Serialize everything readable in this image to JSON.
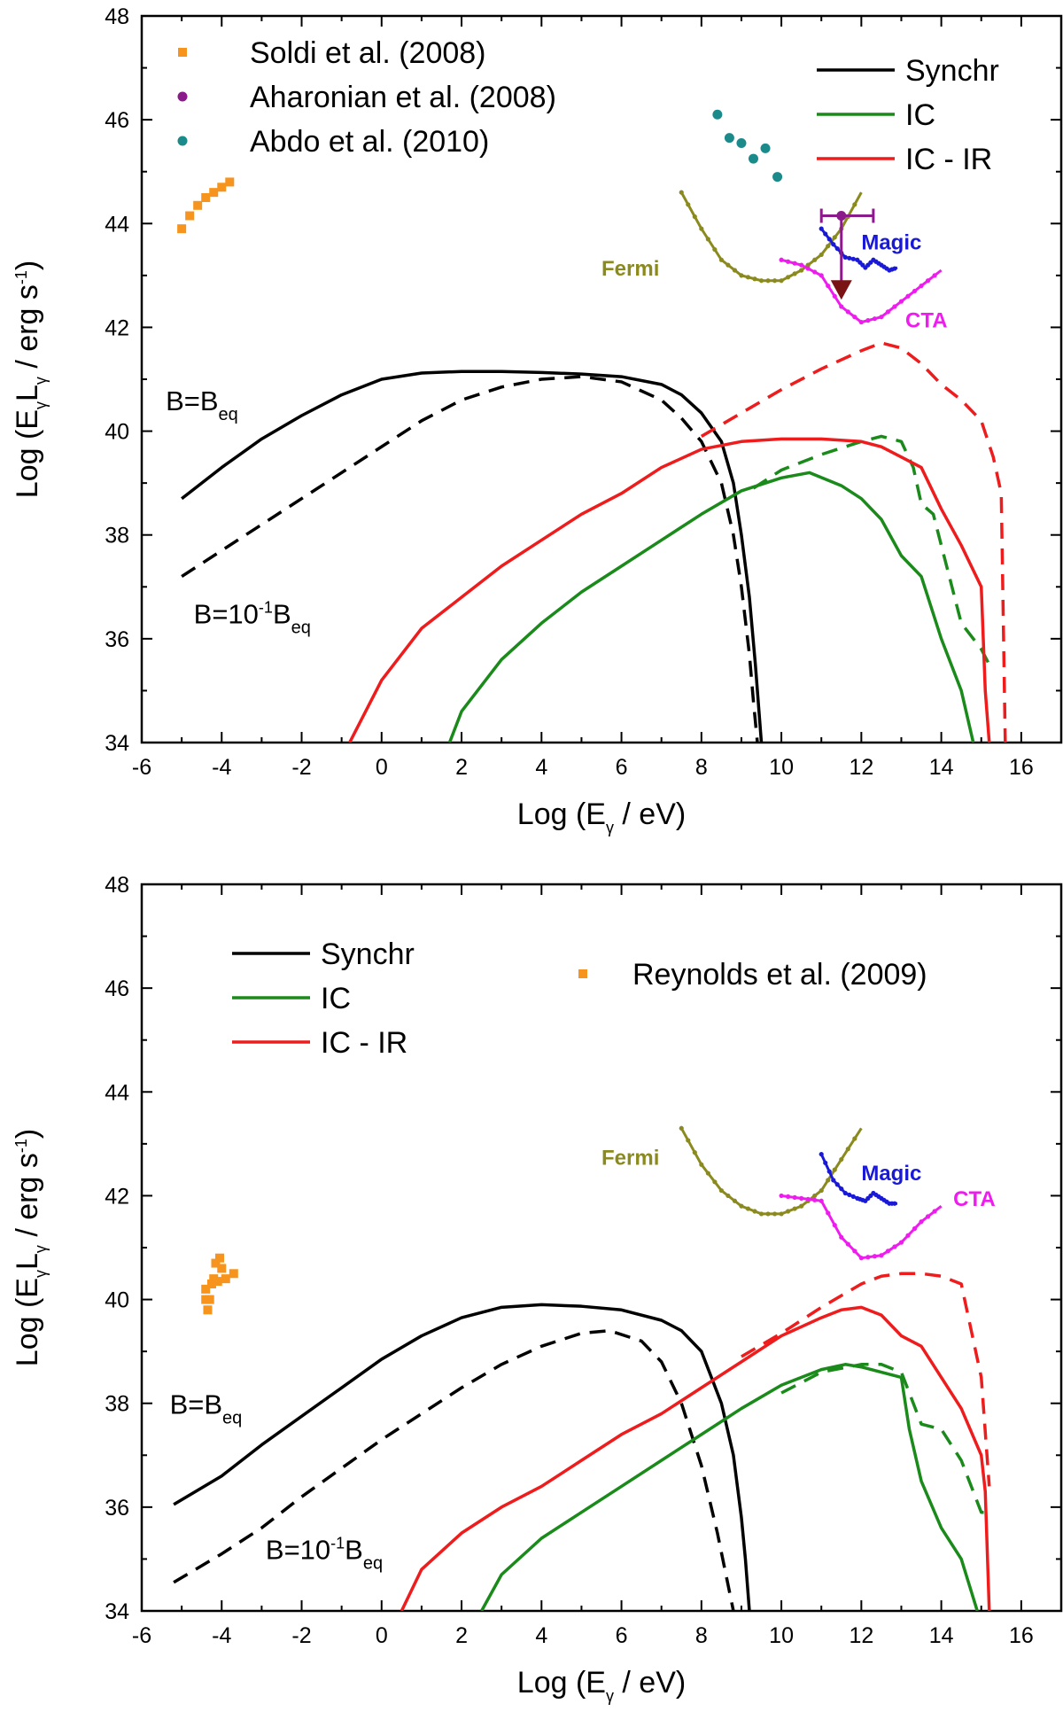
{
  "chart_data": [
    {
      "type": "line",
      "panel": "top",
      "xlabel": "Log (E",
      "xlabel_sub": "γ",
      "xlabel_tail": " / eV)",
      "ylabel": "Log (E",
      "ylabel_sub1": "γ",
      "ylabel_mid": "L",
      "ylabel_sub2": "γ",
      "ylabel_tail": " / erg s",
      "ylabel_sup": "-1",
      "ylabel_end": ")",
      "xlim": [
        -6,
        17
      ],
      "ylim": [
        34,
        48
      ],
      "xticks": [
        -6,
        -4,
        -2,
        0,
        2,
        4,
        6,
        8,
        10,
        12,
        14,
        16
      ],
      "yticks": [
        34,
        36,
        38,
        40,
        42,
        44,
        46,
        48
      ],
      "annotations": [
        {
          "text": "B=B",
          "sub": "eq",
          "x": -5.4,
          "y": 40.4
        },
        {
          "text": "B=10",
          "sup": "-1",
          "mid": "B",
          "sub": "eq",
          "x": -4.7,
          "y": 36.3
        }
      ],
      "legend_series": [
        {
          "name": "Synchr",
          "color": "#000000"
        },
        {
          "name": "IC",
          "color": "#1a8a1a"
        },
        {
          "name": "IC - IR",
          "color": "#ee1c1c"
        }
      ],
      "legend_points": [
        {
          "name": "Soldi et al. (2008)",
          "color": "#f7941d",
          "marker": "square"
        },
        {
          "name": "Aharonian et al. (2008)",
          "color": "#8b1a8b",
          "marker": "circle"
        },
        {
          "name": "Abdo et al. (2010)",
          "color": "#1a8a8a",
          "marker": "circle"
        }
      ],
      "series": [
        {
          "name": "Synchr",
          "style": "solid",
          "color": "#000000",
          "x": [
            -5,
            -4,
            -3,
            -2,
            -1,
            0,
            1,
            2,
            3,
            4,
            5,
            6,
            7,
            7.5,
            8,
            8.5,
            8.8,
            9.0,
            9.2,
            9.35,
            9.45,
            9.5
          ],
          "y": [
            38.7,
            39.3,
            39.85,
            40.3,
            40.7,
            41.0,
            41.12,
            41.15,
            41.15,
            41.13,
            41.1,
            41.05,
            40.9,
            40.7,
            40.35,
            39.8,
            39.0,
            38.0,
            36.8,
            35.5,
            34.5,
            34
          ]
        },
        {
          "name": "Synchr B=0.1Beq",
          "style": "dashed",
          "color": "#000000",
          "x": [
            -5,
            -4,
            -3,
            -2,
            -1,
            0,
            1,
            2,
            3,
            4,
            5,
            6,
            7,
            7.5,
            8,
            8.5,
            8.8,
            9.0,
            9.2,
            9.3,
            9.4
          ],
          "y": [
            37.2,
            37.7,
            38.2,
            38.7,
            39.2,
            39.7,
            40.2,
            40.6,
            40.85,
            41.0,
            41.05,
            40.95,
            40.6,
            40.25,
            39.8,
            39.0,
            38.0,
            37.0,
            35.7,
            34.8,
            34
          ]
        },
        {
          "name": "IC",
          "style": "solid",
          "color": "#1a8a1a",
          "x": [
            1.7,
            2,
            3,
            4,
            5,
            6,
            7,
            8,
            9,
            10,
            10.7,
            11.5,
            12,
            12.5,
            13,
            13.5,
            14,
            14.5,
            14.8
          ],
          "y": [
            34,
            34.6,
            35.6,
            36.3,
            36.9,
            37.4,
            37.9,
            38.4,
            38.85,
            39.1,
            39.2,
            38.95,
            38.7,
            38.3,
            37.6,
            37.2,
            36.0,
            35.0,
            34
          ]
        },
        {
          "name": "IC dashed",
          "style": "dashed",
          "color": "#1a8a1a",
          "x": [
            9.3,
            10,
            11,
            12,
            12.5,
            13,
            13.3,
            13.5,
            13.8,
            14,
            14.5,
            15,
            15.2
          ],
          "y": [
            38.9,
            39.25,
            39.55,
            39.8,
            39.9,
            39.8,
            39.3,
            38.6,
            38.4,
            37.8,
            36.3,
            35.8,
            35.5
          ]
        },
        {
          "name": "IC - IR",
          "style": "solid",
          "color": "#ee1c1c",
          "x": [
            -0.8,
            0,
            1,
            2,
            3,
            4,
            5,
            6,
            7,
            8,
            9,
            10,
            11,
            12,
            12.5,
            13,
            13.5,
            14,
            14.5,
            15,
            15.1,
            15.2
          ],
          "y": [
            34,
            35.2,
            36.2,
            36.8,
            37.4,
            37.9,
            38.4,
            38.8,
            39.3,
            39.65,
            39.8,
            39.85,
            39.85,
            39.8,
            39.7,
            39.5,
            39.3,
            38.5,
            37.8,
            37.0,
            35.0,
            34
          ]
        },
        {
          "name": "IC - IR dashed",
          "style": "dashed",
          "color": "#ee1c1c",
          "x": [
            8,
            9,
            10,
            11,
            12,
            12.5,
            13,
            13.5,
            14,
            14.5,
            15,
            15.3,
            15.5,
            15.6
          ],
          "y": [
            39.9,
            40.35,
            40.8,
            41.2,
            41.55,
            41.7,
            41.6,
            41.3,
            40.9,
            40.6,
            40.2,
            39.5,
            38.8,
            34
          ]
        }
      ],
      "instruments": [
        {
          "name": "Fermi",
          "color": "#8a8a1e",
          "label_x": 5.5,
          "label_y": 43.0,
          "x": [
            7.5,
            8,
            8.5,
            9,
            9.5,
            10,
            10.5,
            11,
            11.5,
            12
          ],
          "y": [
            44.6,
            43.9,
            43.3,
            43.0,
            42.9,
            42.9,
            43.1,
            43.4,
            43.9,
            44.6
          ]
        },
        {
          "name": "Magic",
          "color": "#1a1ad6",
          "label_x": 12.0,
          "label_y": 43.5,
          "x": [
            11.0,
            11.3,
            11.6,
            11.9,
            12.1,
            12.3,
            12.5,
            12.7,
            12.9
          ],
          "y": [
            43.9,
            43.6,
            43.35,
            43.3,
            43.15,
            43.3,
            43.2,
            43.1,
            43.15
          ]
        },
        {
          "name": "CTA",
          "color": "#ee1cee",
          "label_x": 13.1,
          "label_y": 42.0,
          "x": [
            10,
            10.5,
            11,
            11.5,
            12,
            12.5,
            13,
            13.5,
            14
          ],
          "y": [
            43.3,
            43.2,
            43.0,
            42.4,
            42.1,
            42.2,
            42.5,
            42.8,
            43.1
          ]
        }
      ],
      "points": [
        {
          "name": "Soldi et al. (2008)",
          "color": "#f7941d",
          "marker": "square",
          "x": [
            -5.0,
            -4.8,
            -4.6,
            -4.4,
            -4.2,
            -4.0,
            -3.8
          ],
          "y": [
            43.9,
            44.15,
            44.35,
            44.5,
            44.6,
            44.7,
            44.8
          ]
        },
        {
          "name": "Abdo et al. (2010)",
          "color": "#1a8a8a",
          "marker": "circle",
          "x": [
            8.4,
            8.7,
            9.0,
            9.3,
            9.6,
            9.9
          ],
          "y": [
            46.1,
            45.65,
            45.55,
            45.25,
            45.45,
            44.9
          ]
        }
      ],
      "upper_limit": {
        "name": "Aharonian et al. (2008)",
        "color": "#8b1a8b",
        "x": 11.5,
        "y": 44.15,
        "xerr": [
          11.0,
          12.3
        ],
        "y_to": 42.6,
        "arrow_color": "#7a1414"
      }
    },
    {
      "type": "line",
      "panel": "bottom",
      "xlabel": "Log (E",
      "xlabel_sub": "γ",
      "xlabel_tail": " / eV)",
      "ylabel": "Log (E",
      "ylabel_sub1": "γ",
      "ylabel_mid": "L",
      "ylabel_sub2": "γ",
      "ylabel_tail": " / erg s",
      "ylabel_sup": "-1",
      "ylabel_end": ")",
      "xlim": [
        -6,
        17
      ],
      "ylim": [
        34,
        48
      ],
      "xticks": [
        -6,
        -4,
        -2,
        0,
        2,
        4,
        6,
        8,
        10,
        12,
        14,
        16
      ],
      "yticks": [
        34,
        36,
        38,
        40,
        42,
        44,
        46,
        48
      ],
      "annotations": [
        {
          "text": "B=B",
          "sub": "eq",
          "x": -5.3,
          "y": 37.8
        },
        {
          "text": "B=10",
          "sup": "-1",
          "mid": "B",
          "sub": "eq",
          "x": -2.9,
          "y": 35.0
        }
      ],
      "legend_series": [
        {
          "name": "Synchr",
          "color": "#000000"
        },
        {
          "name": "IC",
          "color": "#1a8a1a"
        },
        {
          "name": "IC - IR",
          "color": "#ee1c1c"
        }
      ],
      "legend_points": [
        {
          "name": "Reynolds et al. (2009)",
          "color": "#f7941d",
          "marker": "square"
        }
      ],
      "series": [
        {
          "name": "Synchr",
          "style": "solid",
          "color": "#000000",
          "x": [
            -5.2,
            -4,
            -3,
            -2,
            -1,
            0,
            1,
            2,
            3,
            4,
            5,
            6,
            7,
            7.5,
            8,
            8.5,
            8.8,
            9.0,
            9.1,
            9.2
          ],
          "y": [
            36.05,
            36.6,
            37.2,
            37.75,
            38.3,
            38.85,
            39.3,
            39.65,
            39.85,
            39.9,
            39.87,
            39.8,
            39.6,
            39.4,
            39.0,
            38.0,
            37.0,
            35.8,
            35.0,
            34
          ]
        },
        {
          "name": "Synchr B=0.1Beq",
          "style": "dashed",
          "color": "#000000",
          "x": [
            -5.2,
            -4,
            -3,
            -2,
            -1,
            0,
            1,
            2,
            3,
            4,
            5,
            5.7,
            6.5,
            7,
            7.5,
            8,
            8.4,
            8.8
          ],
          "y": [
            34.55,
            35.1,
            35.6,
            36.2,
            36.75,
            37.3,
            37.8,
            38.3,
            38.75,
            39.1,
            39.35,
            39.4,
            39.2,
            38.8,
            38.0,
            36.8,
            35.5,
            34
          ]
        },
        {
          "name": "IC",
          "style": "solid",
          "color": "#1a8a1a",
          "x": [
            2.5,
            3,
            4,
            5,
            6,
            7,
            8,
            9,
            10,
            11,
            11.6,
            12,
            12.5,
            13,
            13.2,
            13.5,
            14,
            14.5,
            14.9
          ],
          "y": [
            34,
            34.7,
            35.4,
            35.9,
            36.4,
            36.9,
            37.4,
            37.9,
            38.35,
            38.65,
            38.75,
            38.7,
            38.6,
            38.5,
            37.5,
            36.5,
            35.6,
            35.0,
            34
          ]
        },
        {
          "name": "IC dashed",
          "style": "dashed",
          "color": "#1a8a1a",
          "x": [
            10,
            11,
            12,
            12.5,
            13,
            13.5,
            14,
            14.5,
            15,
            15.1
          ],
          "y": [
            38.2,
            38.6,
            38.75,
            38.75,
            38.6,
            37.6,
            37.5,
            36.9,
            35.9,
            35.9
          ]
        },
        {
          "name": "IC - IR",
          "style": "solid",
          "color": "#ee1c1c",
          "x": [
            0.5,
            1,
            2,
            3,
            4,
            5,
            6,
            7,
            8,
            9,
            10,
            11,
            11.5,
            12,
            12.5,
            13,
            13.5,
            14,
            14.5,
            15,
            15.1,
            15.2
          ],
          "y": [
            34,
            34.8,
            35.5,
            36.0,
            36.4,
            36.9,
            37.4,
            37.8,
            38.3,
            38.8,
            39.3,
            39.65,
            39.8,
            39.85,
            39.7,
            39.3,
            39.1,
            38.5,
            37.9,
            37.0,
            36.3,
            34
          ]
        },
        {
          "name": "IC - IR dashed",
          "style": "dashed",
          "color": "#ee1c1c",
          "x": [
            9,
            10,
            11,
            12,
            12.5,
            13,
            13.5,
            14,
            14.5,
            15,
            15.2
          ],
          "y": [
            38.9,
            39.35,
            39.85,
            40.3,
            40.45,
            40.5,
            40.5,
            40.45,
            40.3,
            38.5,
            36.4
          ]
        }
      ],
      "instruments": [
        {
          "name": "Fermi",
          "color": "#8a8a1e",
          "label_x": 5.5,
          "label_y": 42.6,
          "x": [
            7.5,
            8,
            8.5,
            9,
            9.5,
            10,
            10.5,
            11,
            11.5,
            12
          ],
          "y": [
            43.3,
            42.6,
            42.1,
            41.8,
            41.65,
            41.65,
            41.8,
            42.1,
            42.7,
            43.3
          ]
        },
        {
          "name": "Magic",
          "color": "#1a1ad6",
          "label_x": 12.0,
          "label_y": 42.3,
          "x": [
            11.0,
            11.3,
            11.6,
            11.9,
            12.1,
            12.3,
            12.5,
            12.7,
            12.9
          ],
          "y": [
            42.8,
            42.3,
            42.05,
            41.95,
            41.9,
            42.05,
            41.95,
            41.85,
            41.85
          ]
        },
        {
          "name": "CTA",
          "color": "#ee1cee",
          "label_x": 14.3,
          "label_y": 41.8,
          "x": [
            10,
            10.5,
            11,
            11.5,
            12,
            12.5,
            13,
            13.5,
            14
          ],
          "y": [
            42.0,
            41.95,
            41.9,
            41.2,
            40.8,
            40.85,
            41.1,
            41.5,
            41.8
          ]
        }
      ],
      "points": [
        {
          "name": "Reynolds et al. (2009)",
          "color": "#f7941d",
          "marker": "square",
          "x": [
            -4.4,
            -4.3,
            -4.2,
            -4.1,
            -4.0,
            -3.9,
            -3.7,
            -4.35,
            -4.15,
            -4.05,
            -4.25,
            -4.4
          ],
          "y": [
            40.2,
            40.0,
            40.4,
            40.35,
            40.6,
            40.4,
            40.5,
            39.8,
            40.7,
            40.8,
            40.3,
            40.0
          ]
        }
      ]
    }
  ]
}
